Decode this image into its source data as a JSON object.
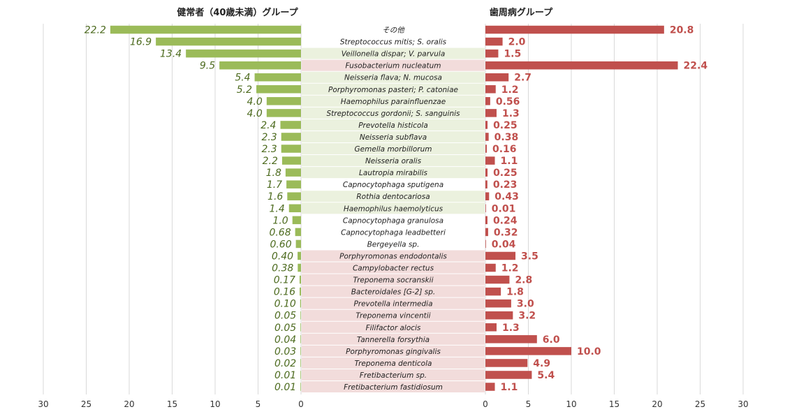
{
  "chart_data": {
    "type": "bar",
    "layout": "butterfly (back-to-back horizontal bars)",
    "left_title": "健常者（40歳未満）グループ",
    "right_title": "歯周病グループ",
    "categories": [
      "その他",
      "Streptococcus mitis; S. oralis",
      "Veillonella dispar; V. parvula",
      "Fusobacterium nucleatum",
      "Neisseria flava; N. mucosa",
      "Porphyromonas pasteri; P. catoniae",
      "Haemophilus parainfluenzae",
      "Streptococcus gordonii; S. sanguinis",
      "Prevotella histicola",
      "Neisseria subflava",
      "Gemella morbillorum",
      "Neisseria oralis",
      "Lautropia mirabilis",
      "Capnocytophaga sputigena",
      "Rothia dentocariosa",
      "Haemophilus haemolyticus",
      "Capnocytophaga granulosa",
      "Capnocytophaga leadbetteri",
      "Bergeyella sp.",
      "Porphyromonas endodontalis",
      "Campylobacter rectus",
      "Treponema socranskii",
      "Bacteroidales [G-2] sp.",
      "Prevotella intermedia",
      "Treponema vincentii",
      "Filifactor alocis",
      "Tannerella forsythia",
      "Porphyromonas gingivalis",
      "Treponema denticola",
      "Fretibacterium sp.",
      "Fretibacterium fastidiosum"
    ],
    "category_highlight": [
      "none",
      "none",
      "green",
      "red",
      "green",
      "green",
      "green",
      "green",
      "green",
      "green",
      "green",
      "green",
      "green",
      "none",
      "green",
      "green",
      "none",
      "none",
      "none",
      "red",
      "red",
      "red",
      "red",
      "red",
      "red",
      "red",
      "red",
      "red",
      "red",
      "red",
      "red"
    ],
    "series": [
      {
        "side": "left",
        "values": [
          22.2,
          16.9,
          13.4,
          9.5,
          5.4,
          5.2,
          4.0,
          4.0,
          2.4,
          2.3,
          2.3,
          2.2,
          1.8,
          1.7,
          1.6,
          1.4,
          1.0,
          0.68,
          0.6,
          0.4,
          0.38,
          0.17,
          0.16,
          0.1,
          0.05,
          0.05,
          0.04,
          0.03,
          0.02,
          0.01,
          0.01
        ],
        "labels": [
          "22.2",
          "16.9",
          "13.4",
          "9.5",
          "5.4",
          "5.2",
          "4.0",
          "4.0",
          "2.4",
          "2.3",
          "2.3",
          "2.2",
          "1.8",
          "1.7",
          "1.6",
          "1.4",
          "1.0",
          "0.68",
          "0.60",
          "0.40",
          "0.38",
          "0.17",
          "0.16",
          "0.10",
          "0.05",
          "0.05",
          "0.04",
          "0.03",
          "0.02",
          "0.01",
          "0.01"
        ],
        "color": "#9bbb59"
      },
      {
        "side": "right",
        "values": [
          20.8,
          2.0,
          1.5,
          22.4,
          2.7,
          1.2,
          0.56,
          1.3,
          0.25,
          0.38,
          0.16,
          1.1,
          0.25,
          0.23,
          0.43,
          0.01,
          0.24,
          0.32,
          0.04,
          3.5,
          1.2,
          2.8,
          1.8,
          3.0,
          3.2,
          1.3,
          6.0,
          10.0,
          4.9,
          5.4,
          1.1
        ],
        "labels": [
          "20.8",
          "2.0",
          "1.5",
          "22.4",
          "2.7",
          "1.2",
          "0.56",
          "1.3",
          "0.25",
          "0.38",
          "0.16",
          "1.1",
          "0.25",
          "0.23",
          "0.43",
          "0.01",
          "0.24",
          "0.32",
          "0.04",
          "3.5",
          "1.2",
          "2.8",
          "1.8",
          "3.0",
          "3.2",
          "1.3",
          "6.0",
          "10.0",
          "4.9",
          "5.4",
          "1.1"
        ],
        "color": "#c0504d"
      }
    ],
    "axis_range": [
      0,
      30
    ],
    "axis_ticks": [
      "30",
      "25",
      "20",
      "15",
      "10",
      "5",
      "0"
    ],
    "right_axis_ticks": [
      "0",
      "5",
      "10",
      "15",
      "20",
      "25",
      "30"
    ],
    "grid": "vertical lines",
    "colors": {
      "green_band": "#ebf1de",
      "red_band": "#f2dcdb",
      "grid": "#d9d9d9"
    }
  }
}
